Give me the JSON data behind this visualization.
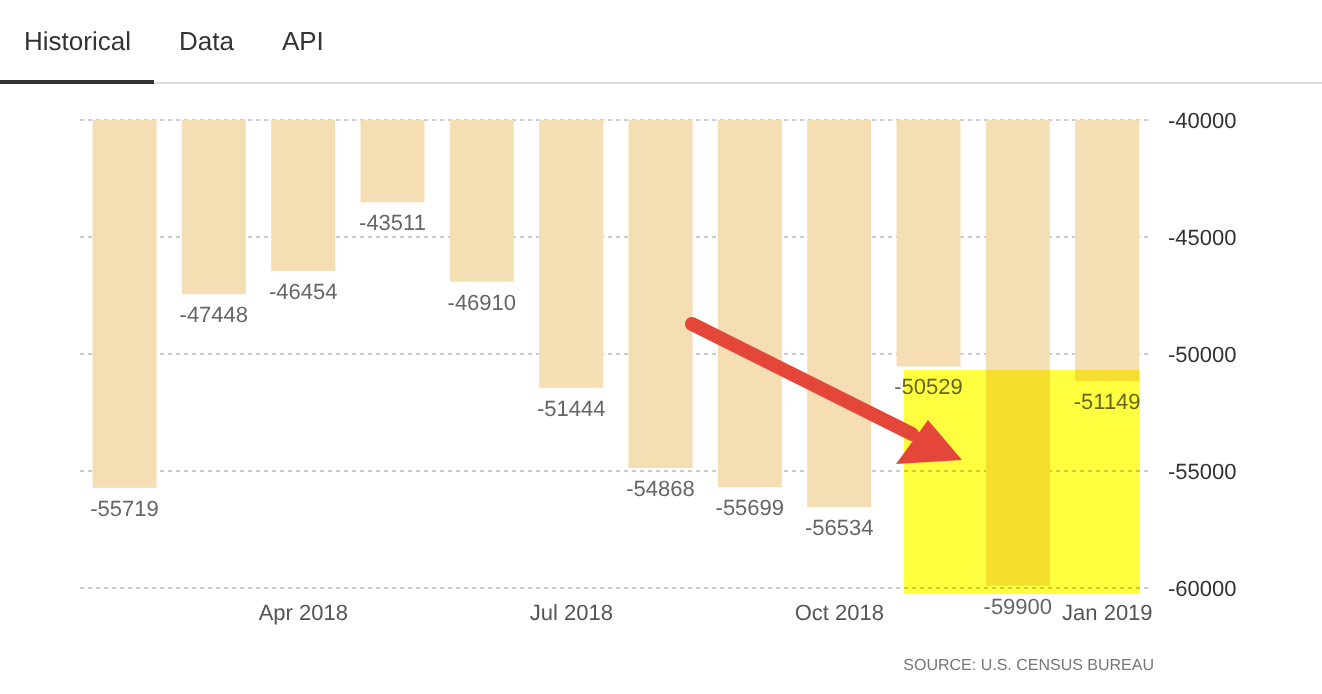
{
  "chart_data": {
    "type": "bar",
    "categories": [
      null,
      null,
      "Apr 2018",
      null,
      null,
      "Jul 2018",
      null,
      null,
      "Oct 2018",
      null,
      null,
      "Jan 2019"
    ],
    "values": [
      -55719,
      -47448,
      -46454,
      -43511,
      -46910,
      -51444,
      -54868,
      -55699,
      -56534,
      -50529,
      -59900,
      -51149
    ],
    "color": "#f5deb3",
    "ylim": [
      -60000,
      -40000
    ],
    "yticks": [
      -60000,
      -55000,
      -50000,
      -45000,
      -40000
    ],
    "grid": "y",
    "data_labels": true,
    "annotations": [
      "Historical",
      "Data",
      "API",
      "SOURCE: U.S. CENSUS BUREAU"
    ]
  }
}
